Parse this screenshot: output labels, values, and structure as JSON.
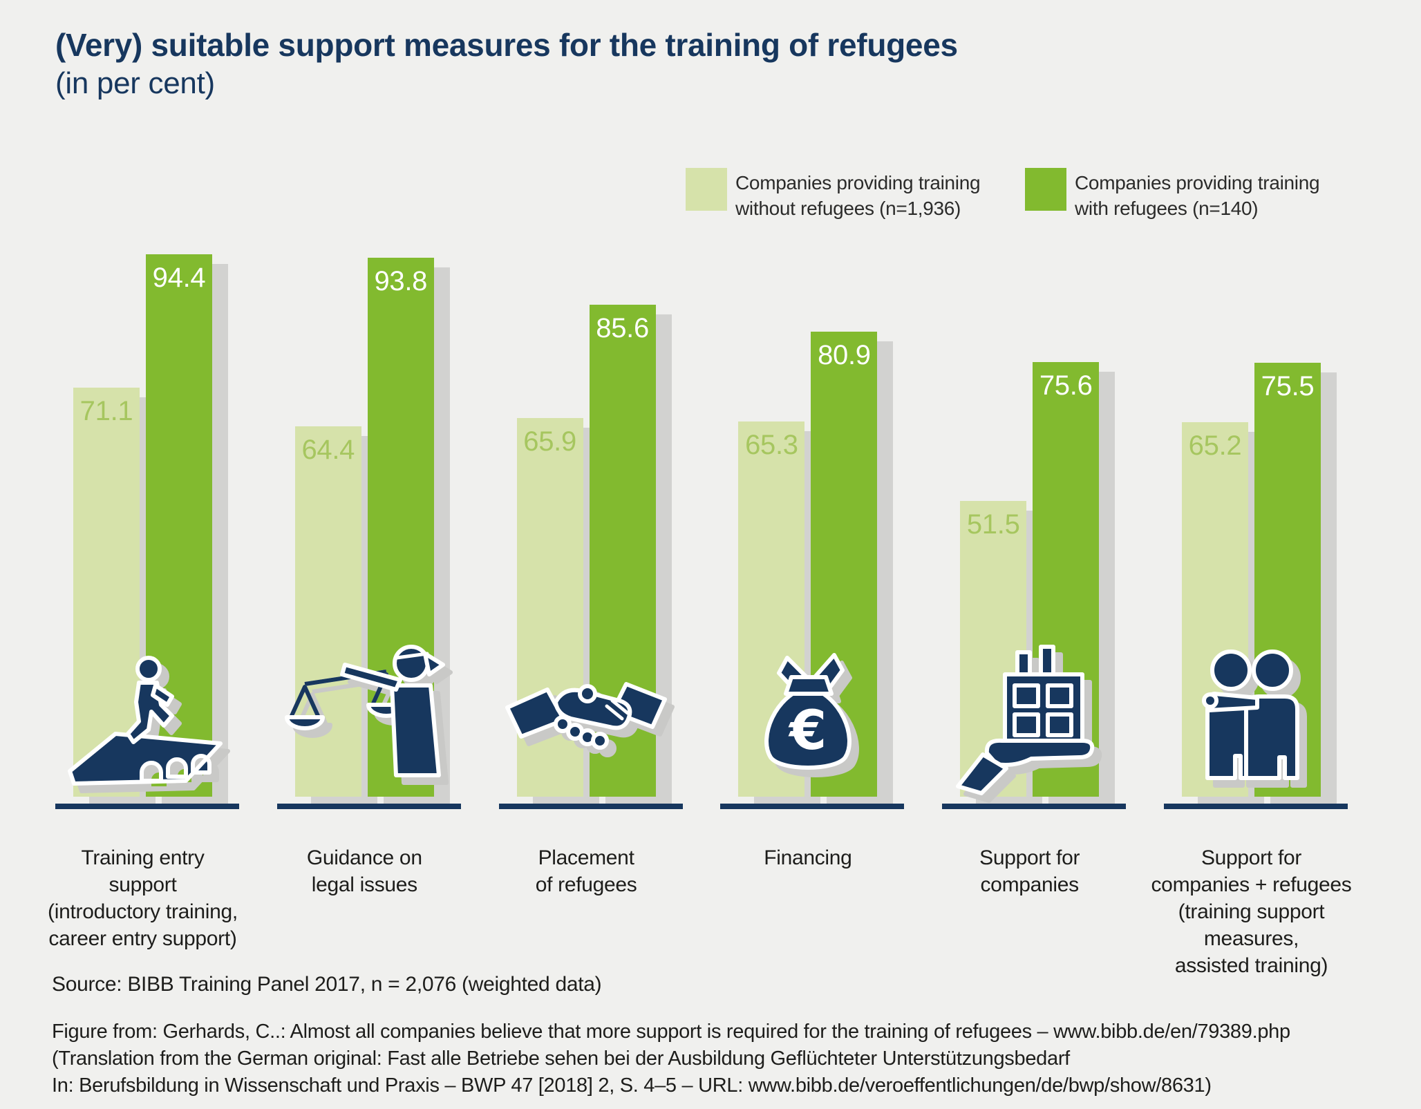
{
  "title": {
    "line1": "(Very) suitable support measures for the training of refugees",
    "line2": "(in per cent)"
  },
  "legend": {
    "items": [
      {
        "line1": "Companies providing training",
        "line2": "without refugees (n=1,936)",
        "color": "#d6e2aa"
      },
      {
        "line1": "Companies providing training",
        "line2": "with refugees (n=140)",
        "color": "#82ba2f"
      }
    ]
  },
  "chart_data": {
    "type": "bar",
    "title": "(Very) suitable support measures for the training of refugees",
    "subtitle": "(in per cent)",
    "unit": "per cent",
    "ylim": [
      0,
      100
    ],
    "grid": false,
    "legend_position": "top-right",
    "categories": [
      "Training entry support (introductory training, career entry support)",
      "Guidance on legal issues",
      "Placement of refugees",
      "Financing",
      "Support for companies",
      "Support for companies + refugees (training support measures, assisted training)"
    ],
    "category_label_lines": [
      [
        "Training entry",
        "support",
        "(introductory training,",
        "career entry support)"
      ],
      [
        "Guidance on",
        "legal issues"
      ],
      [
        "Placement",
        "of refugees"
      ],
      [
        "Financing"
      ],
      [
        "Support for",
        "companies"
      ],
      [
        "Support for",
        "companies + refugees",
        "(training support measures,",
        "assisted training)"
      ]
    ],
    "icons": [
      "bridge-walker",
      "justice-scales",
      "handshake",
      "money-bag",
      "hand-building",
      "two-people"
    ],
    "series": [
      {
        "name": "Companies providing training without refugees (n=1,936)",
        "color": "#d6e2aa",
        "values": [
          71.1,
          64.4,
          65.9,
          65.3,
          51.5,
          65.2
        ]
      },
      {
        "name": "Companies providing training with refugees (n=140)",
        "color": "#82ba2f",
        "values": [
          94.4,
          93.8,
          85.6,
          80.9,
          75.6,
          75.5
        ]
      }
    ]
  },
  "footer": {
    "source": "Source: BIBB Training Panel 2017, n = 2,076 (weighted data)",
    "figure_lines": [
      "Figure from: Gerhards, C..: Almost all companies believe that more support is required for the training of refugees – www.bibb.de/en/79389.php",
      "(Translation from the German original: Fast alle Betriebe sehen bei der Ausbildung Geflüchteter Unterstützungsbedarf",
      "In: Berufsbildung in Wissenschaft und Praxis – BWP 47 [2018] 2, S. 4–5 – URL: www.bibb.de/veroeffentlichungen/de/bwp/show/8631)"
    ]
  },
  "colors": {
    "bg": "#f0f0ee",
    "navy": "#17375e",
    "green-dark": "#82ba2f",
    "green-light": "#d6e2aa",
    "value-light": "#a6c65f",
    "shadow": "#d2d2d0",
    "text-dark": "#1d1d1b",
    "legend-text": "#2b2b2a"
  }
}
